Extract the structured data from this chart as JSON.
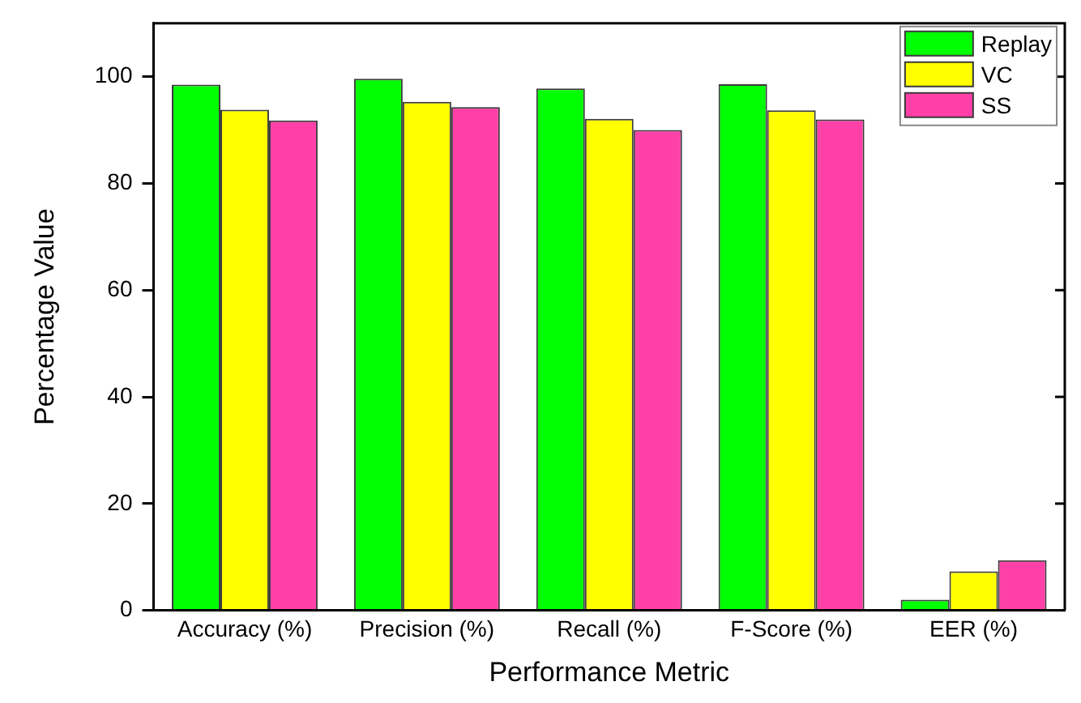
{
  "chart_data": {
    "type": "bar",
    "xlabel": "Performance Metric",
    "ylabel": "Percentage Value",
    "categories": [
      "Accuracy (%)",
      "Precision (%)",
      "Recall (%)",
      "F-Score (%)",
      "EER (%)"
    ],
    "series": [
      {
        "name": "Replay",
        "color": "#00ff00",
        "values": [
          98.5,
          99.6,
          97.8,
          98.6,
          2.0
        ]
      },
      {
        "name": "VC",
        "color": "#ffff00",
        "values": [
          93.8,
          95.3,
          92.1,
          93.7,
          7.3
        ]
      },
      {
        "name": "SS",
        "color": "#ff40a8",
        "values": [
          91.8,
          94.3,
          90.0,
          92.0,
          9.4
        ]
      }
    ],
    "ylim": [
      0,
      110
    ],
    "yticks": [
      0,
      20,
      40,
      60,
      80,
      100
    ],
    "legend": "top right"
  }
}
